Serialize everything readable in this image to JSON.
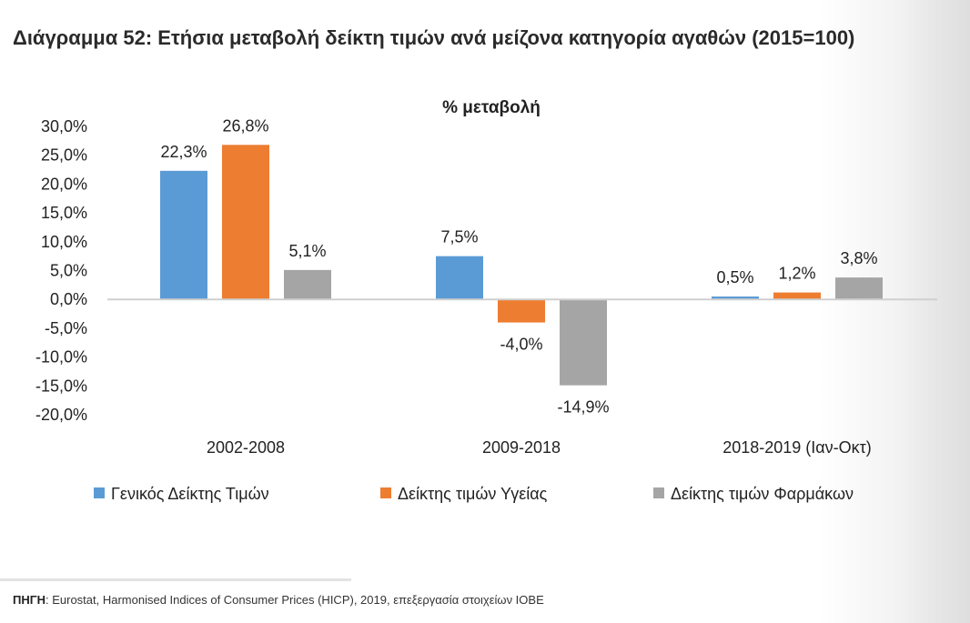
{
  "page": {
    "title": "Διάγραμμα 52: Ετήσια μεταβολή δείκτη τιμών ανά μείζονα κατηγορία αγαθών (2015=100)",
    "source_label": "ΠΗΓΗ",
    "source_text": ": Eurostat, Harmonised Indices of Consumer Prices (HICP), 2019, επεξεργασία στοιχείων ΙΟΒΕ"
  },
  "chart_data": {
    "type": "bar",
    "title": "% μεταβολή",
    "categories": [
      "2002-2008",
      "2009-2018",
      "2018-2019 (Ιαν-Οκτ)"
    ],
    "series": [
      {
        "name": "Γενικός Δείκτης Τιμών",
        "color": "#5b9bd5",
        "values": [
          22.3,
          7.5,
          0.5
        ],
        "labels": [
          "22,3%",
          "7,5%",
          "0,5%"
        ]
      },
      {
        "name": "Δείκτης τιμών Υγείας",
        "color": "#ed7d31",
        "values": [
          26.8,
          -4.0,
          1.2
        ],
        "labels": [
          "26,8%",
          "-4,0%",
          "1,2%"
        ]
      },
      {
        "name": "Δείκτης τιμών Φαρμάκων",
        "color": "#a5a5a5",
        "values": [
          5.1,
          -14.9,
          3.8
        ],
        "labels": [
          "5,1%",
          "-14,9%",
          "3,8%"
        ]
      }
    ],
    "ylim": [
      -20,
      30
    ],
    "yticks": [
      30,
      25,
      20,
      15,
      10,
      5,
      0,
      -5,
      -10,
      -15,
      -20
    ],
    "ytick_labels": [
      "30,0%",
      "25,0%",
      "20,0%",
      "15,0%",
      "10,0%",
      "5,0%",
      "0,0%",
      "-5,0%",
      "-10,0%",
      "-15,0%",
      "-20,0%"
    ],
    "grid": false,
    "legend_position": "bottom"
  }
}
